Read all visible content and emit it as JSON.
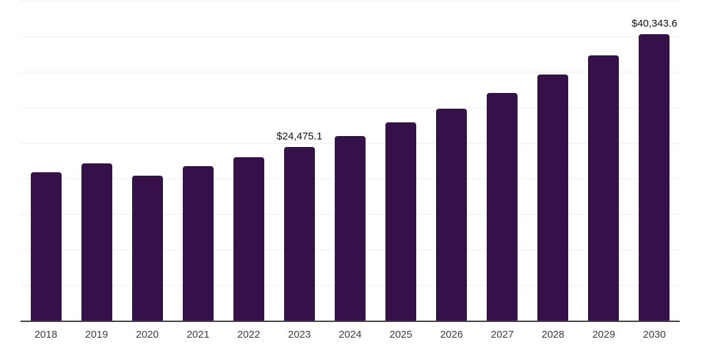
{
  "chart_data": {
    "type": "bar",
    "title": "",
    "xlabel": "",
    "ylabel": "",
    "legend": "none",
    "grid": "horizontal, light gray, no y tick labels",
    "categories": [
      "2018",
      "2019",
      "2020",
      "2021",
      "2022",
      "2023",
      "2024",
      "2025",
      "2026",
      "2027",
      "2028",
      "2029",
      "2030"
    ],
    "values": [
      20900,
      22200,
      20500,
      21800,
      23050,
      24475.1,
      26050,
      27950,
      29900,
      32150,
      34700,
      37400,
      40343.6
    ],
    "ylim": [
      0,
      45000
    ],
    "grid_step": 5000,
    "annotations": [
      {
        "category": "2023",
        "text": "$24,475.1"
      },
      {
        "category": "2030",
        "text": "$40,343.6"
      }
    ],
    "colors": {
      "bar": "#361149",
      "gridline": "#efefef",
      "axis": "#3f3f3f",
      "value_label": "#111111",
      "tick_label": "#3c3c3c",
      "background": "#ffffff"
    }
  }
}
